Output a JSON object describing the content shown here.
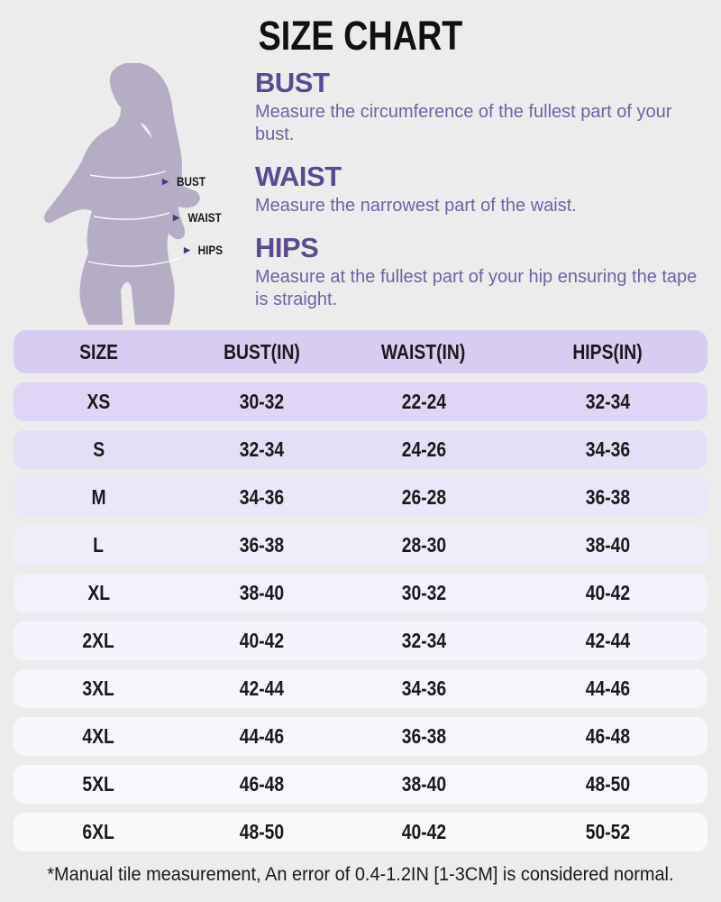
{
  "page": {
    "title": "SIZE CHART",
    "footnote": "*Manual tile measurement, An error of 0.4-1.2IN [1-3CM] is considered normal."
  },
  "figure": {
    "arrow_glyph": "▶",
    "labels": [
      {
        "label": "BUST"
      },
      {
        "label": "WAIST"
      },
      {
        "label": "HIPS"
      }
    ]
  },
  "definitions": [
    {
      "term": "BUST",
      "description": "Measure the circumference of the fullest part of your bust."
    },
    {
      "term": "WAIST",
      "description": "Measure the narrowest part of the waist."
    },
    {
      "term": "HIPS",
      "description": "Measure at the fullest part of your hip ensuring the tape is straight."
    }
  ],
  "colors": {
    "page_background": "#ececec",
    "title_text": "#111111",
    "heading_purple": "#5a4a92",
    "body_purple": "#6f63a2",
    "arrow_purple": "#4a3586",
    "silhouette": "#b4adc4",
    "measure_line": "#ffffff",
    "header_bg": "#d8cdf1",
    "row_colors": [
      "#ded6f4",
      "#e5dff6",
      "#ebe7f9",
      "#f0edfa",
      "#f3f1fb",
      "#f5f3fb",
      "#f6f5fc",
      "#f8f6fc",
      "#f9f8fd",
      "#fafafd"
    ]
  },
  "chart_data": {
    "type": "table",
    "title": "SIZE CHART",
    "columns": [
      "SIZE",
      "BUST(IN)",
      "WAIST(IN)",
      "HIPS(IN)"
    ],
    "rows": [
      [
        "XS",
        "30-32",
        "22-24",
        "32-34"
      ],
      [
        "S",
        "32-34",
        "24-26",
        "34-36"
      ],
      [
        "M",
        "34-36",
        "26-28",
        "36-38"
      ],
      [
        "L",
        "36-38",
        "28-30",
        "38-40"
      ],
      [
        "XL",
        "38-40",
        "30-32",
        "40-42"
      ],
      [
        "2XL",
        "40-42",
        "32-34",
        "42-44"
      ],
      [
        "3XL",
        "42-44",
        "34-36",
        "44-46"
      ],
      [
        "4XL",
        "44-46",
        "36-38",
        "46-48"
      ],
      [
        "5XL",
        "46-48",
        "38-40",
        "48-50"
      ],
      [
        "6XL",
        "48-50",
        "40-42",
        "50-52"
      ]
    ]
  }
}
